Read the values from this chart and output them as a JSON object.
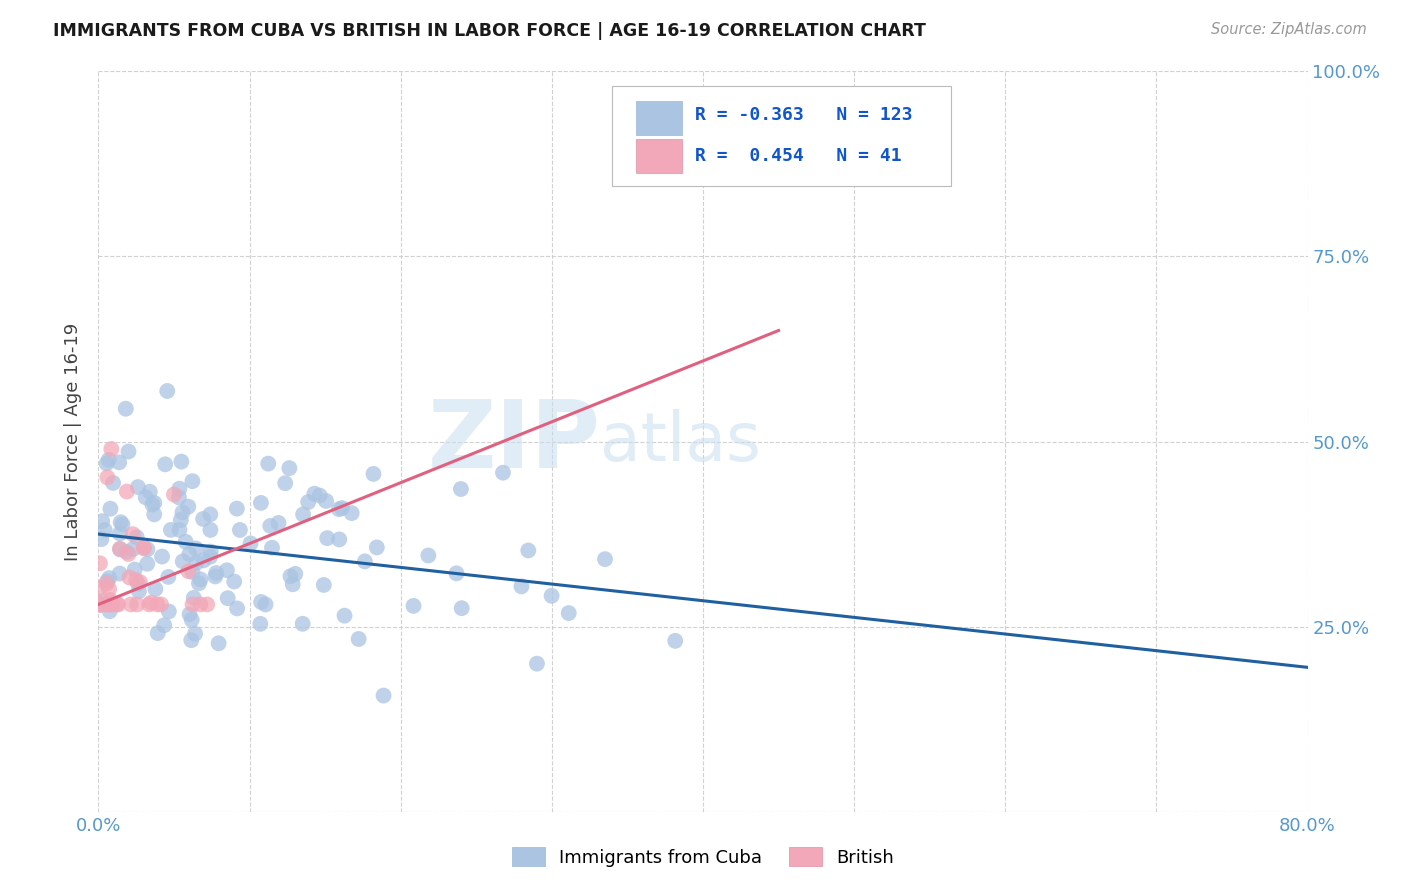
{
  "title": "IMMIGRANTS FROM CUBA VS BRITISH IN LABOR FORCE | AGE 16-19 CORRELATION CHART",
  "source": "Source: ZipAtlas.com",
  "ylabel": "In Labor Force | Age 16-19",
  "xlim": [
    0.0,
    0.8
  ],
  "ylim": [
    0.0,
    1.0
  ],
  "xtick_positions": [
    0.0,
    0.1,
    0.2,
    0.3,
    0.4,
    0.5,
    0.6,
    0.7,
    0.8
  ],
  "xticklabels": [
    "0.0%",
    "",
    "",
    "",
    "",
    "",
    "",
    "",
    "80.0%"
  ],
  "ytick_positions": [
    0.0,
    0.25,
    0.5,
    0.75,
    1.0
  ],
  "yticklabels_right": [
    "",
    "25.0%",
    "50.0%",
    "75.0%",
    "100.0%"
  ],
  "watermark_zip": "ZIP",
  "watermark_atlas": "atlas",
  "legend_label1": "Immigrants from Cuba",
  "legend_label2": "British",
  "R1": -0.363,
  "N1": 123,
  "R2": 0.454,
  "N2": 41,
  "color_cuba": "#aac4e2",
  "color_british": "#f2a8b8",
  "line_color_cuba": "#2060a0",
  "line_color_british": "#e06080",
  "cuba_line_x0": 0.0,
  "cuba_line_y0": 0.375,
  "cuba_line_x1": 0.8,
  "cuba_line_y1": 0.195,
  "british_line_x0": 0.0,
  "british_line_y0": 0.28,
  "british_line_x1": 0.45,
  "british_line_y1": 0.65
}
